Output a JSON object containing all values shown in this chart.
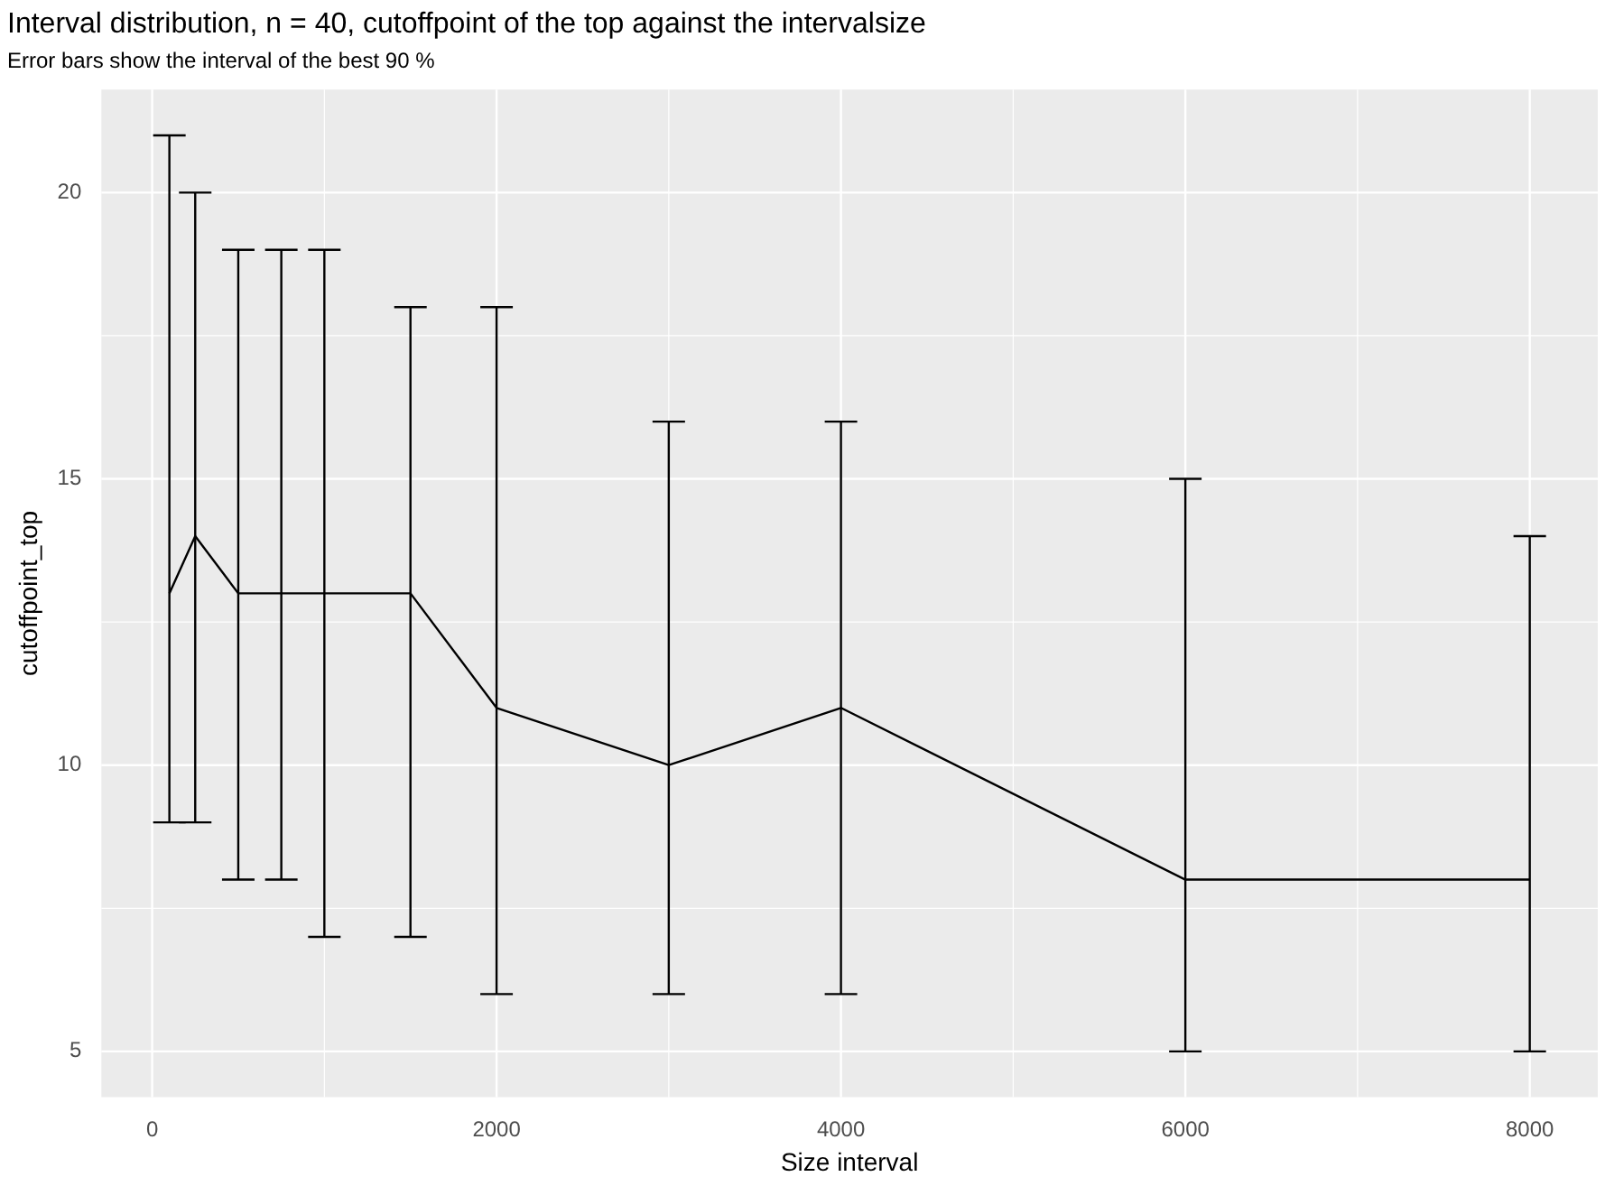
{
  "chart_data": {
    "type": "line",
    "title": "Interval distribution, n = 40, cutoffpoint of the top against the intervalsize",
    "subtitle": "Error bars show the interval of the best 90 %",
    "xlabel": "Size interval",
    "ylabel": "cutoffpoint_top",
    "x": [
      100,
      250,
      500,
      750,
      1000,
      1500,
      2000,
      3000,
      4000,
      6000,
      8000
    ],
    "series": [
      {
        "color": "#000000",
        "values": [
          13,
          14,
          13,
          13,
          13,
          13,
          11,
          10,
          11,
          8,
          8
        ],
        "errors": [
          [
            9,
            21
          ],
          [
            9,
            20
          ],
          [
            8,
            19
          ],
          [
            8,
            19
          ],
          [
            7,
            19
          ],
          [
            7,
            18
          ],
          [
            6,
            18
          ],
          [
            6,
            16
          ],
          [
            6,
            16
          ],
          [
            5,
            15
          ],
          [
            5,
            14
          ]
        ]
      }
    ],
    "xlim": [
      -295,
      8395
    ],
    "ylim": [
      4.2,
      21.8
    ],
    "xticks": [
      0,
      2000,
      4000,
      6000,
      8000
    ],
    "yticks": [
      5,
      10,
      15,
      20
    ],
    "grid": true,
    "legend": false
  }
}
